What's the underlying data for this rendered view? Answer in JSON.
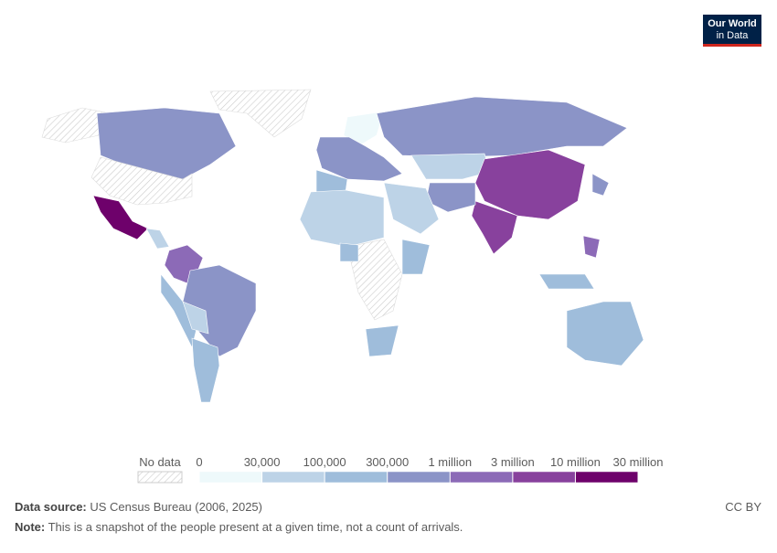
{
  "logo": {
    "line1": "Our World",
    "line2": "in Data"
  },
  "legend": {
    "no_data": "No data",
    "ticks": [
      0,
      {
        "value": 30000,
        "label": "30,000"
      },
      {
        "value": 100000,
        "label": "100,000"
      },
      {
        "value": 300000,
        "label": "300,000"
      },
      {
        "value": 1000000,
        "label": "1 million"
      },
      {
        "value": 3000000,
        "label": "3 million"
      },
      {
        "value": 10000000,
        "label": "10 million"
      },
      {
        "value": 30000000,
        "label": "30 million"
      }
    ],
    "colors": [
      "#eef9fb",
      "#bdd3e7",
      "#9fbddb",
      "#8b94c7",
      "#8c6ab7",
      "#88419d",
      "#6e016b"
    ]
  },
  "footer": {
    "source_label": "Data source:",
    "source": "US Census Bureau (2006, 2025)",
    "license": "CC BY",
    "note_label": "Note:",
    "note": "This is a snapshot of the people present at a given time, not a count of arrivals."
  }
}
